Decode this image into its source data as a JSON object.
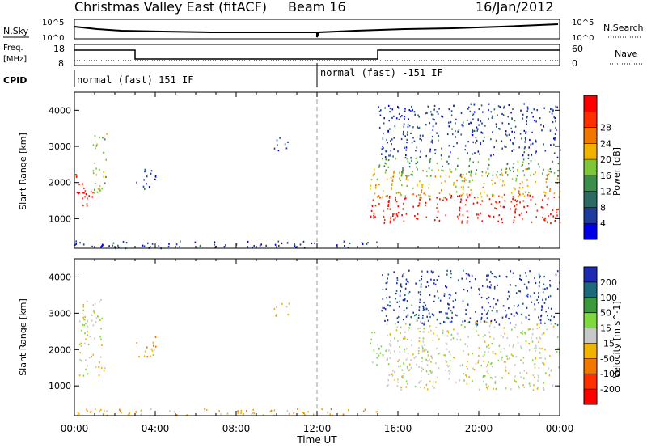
{
  "header": {
    "station": "Christmas Valley East (fitACF)",
    "beam": "Beam 16",
    "date": "16/Jan/2012"
  },
  "strip_labels": {
    "nsky": "N.Sky",
    "nsearch": "N.Search",
    "freq_top": "Freq.",
    "freq_unit": "[MHz]",
    "nave": "Nave",
    "cpid": "CPID",
    "noise_ticks_left": [
      "10^5",
      "10^0"
    ],
    "noise_ticks_right": [
      "10^5",
      "10^0"
    ],
    "freq_ticks": [
      "18",
      "8"
    ],
    "nave_ticks": [
      "60",
      "0"
    ]
  },
  "cpid_segments": [
    "normal (fast) 151 IF",
    "normal (fast) -151 IF"
  ],
  "xaxis": {
    "label": "Time UT",
    "ticks": [
      "00:00",
      "04:00",
      "08:00",
      "12:00",
      "16:00",
      "20:00",
      "00:00"
    ]
  },
  "colorbars": {
    "power": {
      "label": "Power [dB]",
      "ticks": [
        "4",
        "8",
        "12",
        "16",
        "20",
        "24",
        "28"
      ],
      "colors": [
        "#0000e6",
        "#1e3c9a",
        "#2e6a64",
        "#3c8f4a",
        "#7cc83a",
        "#f0b400",
        "#f07800",
        "#ff3000",
        "#ff0000"
      ]
    },
    "velocity": {
      "label": "Velocity [m s^-1]",
      "ticks": [
        "200",
        "100",
        "50",
        "15",
        "-15",
        "-50",
        "-100",
        "-200"
      ],
      "colors": [
        "#1c2bb0",
        "#1e6a7c",
        "#3c9a3c",
        "#7ed840",
        "#c8c8c8",
        "#f0b400",
        "#f07800",
        "#ff3000",
        "#ff0000"
      ]
    }
  },
  "chart_data": [
    {
      "type": "heatmap",
      "panel": "power",
      "ylabel": "Slant Range [km]",
      "yticks": [
        1000,
        2000,
        3000,
        4000
      ],
      "ylim": [
        180,
        4500
      ],
      "xlim_hours": [
        0,
        24
      ],
      "regions": [
        {
          "t": [
            0.0,
            0.9
          ],
          "r": [
            1300,
            2300
          ],
          "level": 8
        },
        {
          "t": [
            0.9,
            1.6
          ],
          "r": [
            1700,
            3500
          ],
          "level": 4
        },
        {
          "t": [
            3.0,
            4.0
          ],
          "r": [
            1800,
            2400
          ],
          "level": 1
        },
        {
          "t": [
            9.8,
            10.6
          ],
          "r": [
            2900,
            3300
          ],
          "level": 1
        },
        {
          "t": [
            0.0,
            15.0
          ],
          "r": [
            200,
            400
          ],
          "level": 1
        },
        {
          "t": [
            14.6,
            24.0
          ],
          "r": [
            900,
            1700
          ],
          "level": 8
        },
        {
          "t": [
            14.6,
            24.0
          ],
          "r": [
            1600,
            2400
          ],
          "level": 5
        },
        {
          "t": [
            15.0,
            24.0
          ],
          "r": [
            2200,
            2700
          ],
          "level": 3
        },
        {
          "t": [
            15.0,
            24.0
          ],
          "r": [
            2700,
            4200
          ],
          "level": 1
        }
      ]
    },
    {
      "type": "heatmap",
      "panel": "velocity",
      "ylabel": "Slant Range [km]",
      "yticks": [
        1000,
        2000,
        3000,
        4000
      ],
      "ylim": [
        180,
        4500
      ],
      "xlim_hours": [
        0,
        24
      ],
      "regions": [
        {
          "t": [
            0.2,
            1.5
          ],
          "r": [
            1300,
            3400
          ],
          "level": 4
        },
        {
          "t": [
            3.0,
            4.0
          ],
          "r": [
            1800,
            2400
          ],
          "level": 5
        },
        {
          "t": [
            9.8,
            10.6
          ],
          "r": [
            2900,
            3300
          ],
          "level": 5
        },
        {
          "t": [
            0.0,
            15.0
          ],
          "r": [
            200,
            400
          ],
          "level": 5
        },
        {
          "t": [
            14.6,
            15.6
          ],
          "r": [
            1600,
            2500
          ],
          "level": 3
        },
        {
          "t": [
            15.4,
            24.0
          ],
          "r": [
            900,
            2800
          ],
          "level": 4
        },
        {
          "t": [
            15.0,
            24.0
          ],
          "r": [
            2700,
            4200
          ],
          "level": 0
        }
      ]
    }
  ]
}
